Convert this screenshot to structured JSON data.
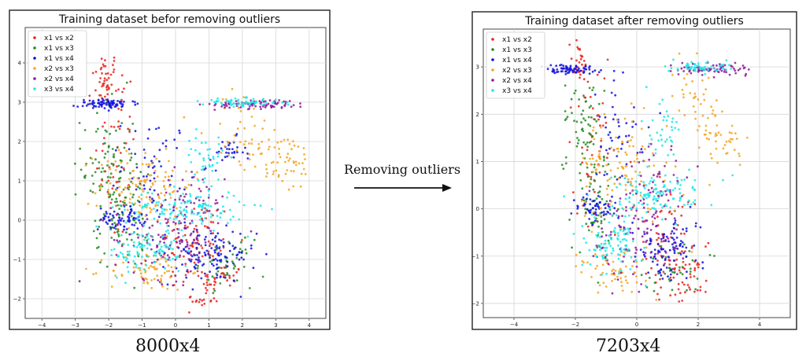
{
  "chart_data": [
    {
      "type": "scatter",
      "title": "Training dataset befor removing outliers",
      "caption": "8000x4",
      "xlim": [
        -4.5,
        4.5
      ],
      "ylim": [
        -2.5,
        4.9
      ],
      "xticks": [
        -4,
        -3,
        -2,
        -1,
        0,
        1,
        2,
        3,
        4
      ],
      "yticks": [
        -2,
        -1,
        0,
        1,
        2,
        3,
        4
      ],
      "grid": true,
      "legend_position": "top-left",
      "series": [
        {
          "name": "x1 vs x2",
          "color": "#e8231c",
          "clusters": [
            {
              "cx": -2.1,
              "cy": 3.6,
              "sx": 0.2,
              "sy": 0.35,
              "n": 40
            },
            {
              "cx": -1.8,
              "cy": 1.8,
              "sx": 0.3,
              "sy": 1.2,
              "n": 55
            },
            {
              "cx": 0.6,
              "cy": -0.6,
              "sx": 0.6,
              "sy": 0.6,
              "n": 90
            },
            {
              "cx": 1.4,
              "cy": -1.5,
              "sx": 0.3,
              "sy": 0.2,
              "n": 30
            },
            {
              "cx": 0.8,
              "cy": -2.0,
              "sx": 0.25,
              "sy": 0.15,
              "n": 20
            }
          ]
        },
        {
          "name": "x1 vs x3",
          "color": "#228b22",
          "clusters": [
            {
              "cx": -2.0,
              "cy": 1.4,
              "sx": 0.4,
              "sy": 0.9,
              "n": 90
            },
            {
              "cx": -1.6,
              "cy": 0.0,
              "sx": 0.4,
              "sy": 0.6,
              "n": 70
            },
            {
              "cx": 1.5,
              "cy": -1.1,
              "sx": 0.4,
              "sy": 0.3,
              "n": 50
            }
          ]
        },
        {
          "name": "x1 vs x4",
          "color": "#1010e0",
          "clusters": [
            {
              "cx": -2.0,
              "cy": 2.95,
              "sx": 0.45,
              "sy": 0.06,
              "n": 80
            },
            {
              "cx": -1.6,
              "cy": 0.05,
              "sx": 0.35,
              "sy": 0.15,
              "n": 70
            },
            {
              "cx": -0.6,
              "cy": 1.4,
              "sx": 0.5,
              "sy": 0.6,
              "n": 60
            },
            {
              "cx": 1.0,
              "cy": -0.9,
              "sx": 0.7,
              "sy": 0.35,
              "n": 120
            },
            {
              "cx": 1.6,
              "cy": 1.7,
              "sx": 0.25,
              "sy": 0.2,
              "n": 30
            }
          ]
        },
        {
          "name": "x2 vs x3",
          "color": "#f5a623",
          "clusters": [
            {
              "cx": -0.9,
              "cy": 0.9,
              "sx": 0.7,
              "sy": 0.5,
              "n": 120
            },
            {
              "cx": -0.8,
              "cy": -1.3,
              "sx": 0.6,
              "sy": 0.25,
              "n": 70
            },
            {
              "cx": 3.2,
              "cy": 1.5,
              "sx": 0.5,
              "sy": 0.4,
              "n": 60
            },
            {
              "cx": 2.0,
              "cy": 2.3,
              "sx": 0.5,
              "sy": 0.5,
              "n": 40
            }
          ]
        },
        {
          "name": "x2 vs x4",
          "color": "#8b1a9b",
          "clusters": [
            {
              "cx": 2.6,
              "cy": 2.95,
              "sx": 0.7,
              "sy": 0.06,
              "n": 80
            },
            {
              "cx": -0.3,
              "cy": -0.5,
              "sx": 0.8,
              "sy": 0.5,
              "n": 110
            },
            {
              "cx": 0.5,
              "cy": 0.5,
              "sx": 0.5,
              "sy": 0.4,
              "n": 50
            }
          ]
        },
        {
          "name": "x3 vs x4",
          "color": "#1ee8e8",
          "clusters": [
            {
              "cx": 2.0,
              "cy": 3.0,
              "sx": 0.6,
              "sy": 0.05,
              "n": 70
            },
            {
              "cx": 0.3,
              "cy": 0.3,
              "sx": 0.9,
              "sy": 0.25,
              "n": 130
            },
            {
              "cx": -0.8,
              "cy": -0.8,
              "sx": 0.6,
              "sy": 0.3,
              "n": 100
            },
            {
              "cx": 0.9,
              "cy": 1.6,
              "sx": 0.3,
              "sy": 0.3,
              "n": 40
            }
          ]
        }
      ]
    },
    {
      "type": "scatter",
      "title": "Training dataset after removing outliers",
      "caption": "7203x4",
      "xlim": [
        -5.0,
        5.0
      ],
      "ylim": [
        -2.3,
        3.8
      ],
      "xticks": [
        -4,
        -2,
        0,
        2,
        4
      ],
      "yticks": [
        -2,
        -1,
        0,
        1,
        2,
        3
      ],
      "grid": true,
      "legend_position": "top-left",
      "series": [
        {
          "name": "x1 vs x2",
          "color": "#e8231c",
          "clusters": [
            {
              "cx": -1.9,
              "cy": 3.1,
              "sx": 0.15,
              "sy": 0.25,
              "n": 30
            },
            {
              "cx": -1.5,
              "cy": 1.5,
              "sx": 0.3,
              "sy": 0.9,
              "n": 50
            },
            {
              "cx": 1.0,
              "cy": -0.7,
              "sx": 0.6,
              "sy": 0.6,
              "n": 80
            },
            {
              "cx": 1.6,
              "cy": -1.5,
              "sx": 0.3,
              "sy": 0.2,
              "n": 30
            }
          ]
        },
        {
          "name": "x1 vs x3",
          "color": "#228b22",
          "clusters": [
            {
              "cx": -1.8,
              "cy": 1.8,
              "sx": 0.3,
              "sy": 0.5,
              "n": 60
            },
            {
              "cx": -1.3,
              "cy": 0.1,
              "sx": 0.35,
              "sy": 0.6,
              "n": 70
            },
            {
              "cx": 1.3,
              "cy": -1.3,
              "sx": 0.4,
              "sy": 0.3,
              "n": 40
            }
          ]
        },
        {
          "name": "x1 vs x4",
          "color": "#1010e0",
          "clusters": [
            {
              "cx": -2.2,
              "cy": 2.95,
              "sx": 0.5,
              "sy": 0.06,
              "n": 70
            },
            {
              "cx": -1.3,
              "cy": 0.05,
              "sx": 0.35,
              "sy": 0.15,
              "n": 60
            },
            {
              "cx": -0.5,
              "cy": 1.6,
              "sx": 0.5,
              "sy": 0.5,
              "n": 50
            },
            {
              "cx": 1.0,
              "cy": -0.9,
              "sx": 0.6,
              "sy": 0.35,
              "n": 100
            }
          ]
        },
        {
          "name": "x2 vs x3",
          "color": "#f5a623",
          "clusters": [
            {
              "cx": -0.4,
              "cy": 0.9,
              "sx": 0.7,
              "sy": 0.5,
              "n": 110
            },
            {
              "cx": -0.6,
              "cy": -1.3,
              "sx": 0.6,
              "sy": 0.3,
              "n": 60
            },
            {
              "cx": 2.7,
              "cy": 1.6,
              "sx": 0.4,
              "sy": 0.3,
              "n": 45
            },
            {
              "cx": 1.8,
              "cy": 2.3,
              "sx": 0.3,
              "sy": 0.4,
              "n": 35
            }
          ]
        },
        {
          "name": "x2 vs x4",
          "color": "#8b1a9b",
          "clusters": [
            {
              "cx": 2.5,
              "cy": 2.95,
              "sx": 0.6,
              "sy": 0.06,
              "n": 70
            },
            {
              "cx": 0.0,
              "cy": -0.5,
              "sx": 0.7,
              "sy": 0.5,
              "n": 100
            },
            {
              "cx": 0.7,
              "cy": 0.5,
              "sx": 0.4,
              "sy": 0.4,
              "n": 40
            }
          ]
        },
        {
          "name": "x3 vs x4",
          "color": "#1ee8e8",
          "clusters": [
            {
              "cx": 2.1,
              "cy": 3.0,
              "sx": 0.5,
              "sy": 0.05,
              "n": 60
            },
            {
              "cx": 0.4,
              "cy": 0.3,
              "sx": 0.8,
              "sy": 0.25,
              "n": 120
            },
            {
              "cx": -0.8,
              "cy": -0.8,
              "sx": 0.5,
              "sy": 0.3,
              "n": 90
            },
            {
              "cx": 0.9,
              "cy": 1.8,
              "sx": 0.3,
              "sy": 0.3,
              "n": 35
            }
          ]
        }
      ]
    }
  ],
  "arrow": {
    "label": "Removing outliers"
  }
}
